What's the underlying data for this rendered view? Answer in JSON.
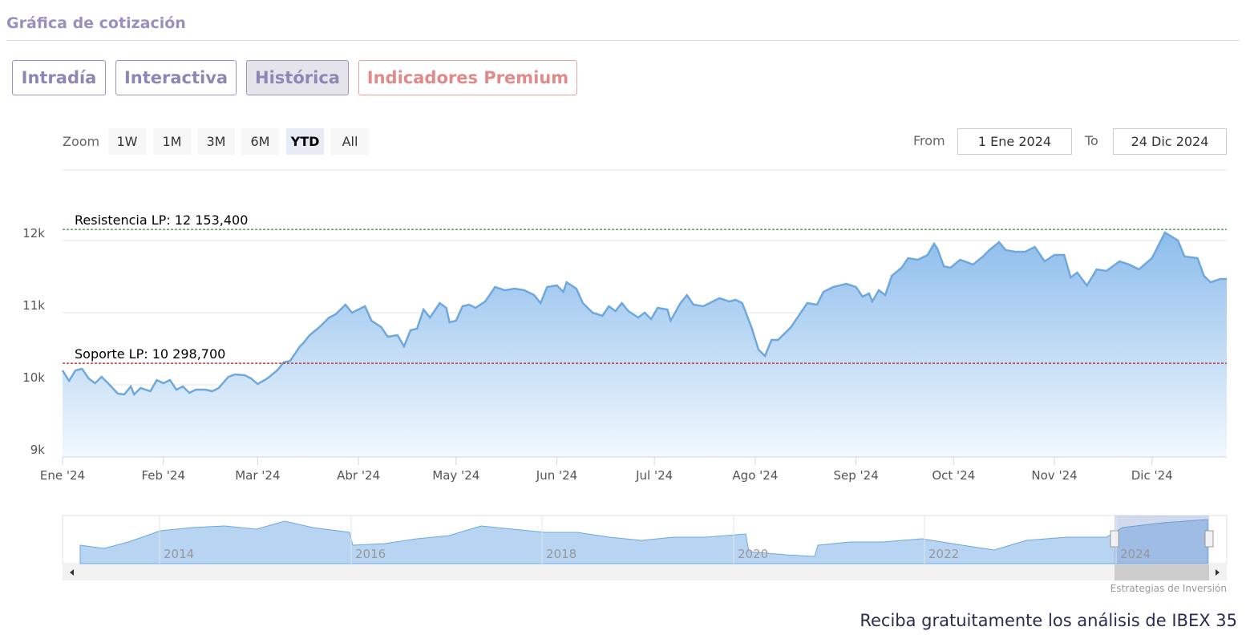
{
  "header": {
    "title": "Gráfica de cotización"
  },
  "tabs": [
    "Intradía",
    "Interactiva",
    "Histórica",
    "Indicadores Premium"
  ],
  "zoom": {
    "label": "Zoom",
    "buttons": [
      "1W",
      "1M",
      "3M",
      "6M",
      "YTD",
      "All"
    ]
  },
  "range": {
    "from_label": "From",
    "from": "1 Ene 2024",
    "to_label": "To",
    "to": "24 Dic 2024"
  },
  "chart_data": {
    "type": "area",
    "x": [
      0,
      2,
      4,
      6,
      8,
      10,
      12,
      14,
      17,
      19,
      21,
      22,
      24,
      27,
      29,
      31,
      33,
      35,
      37,
      39,
      41,
      44,
      46,
      48,
      51,
      53,
      56,
      58,
      60,
      63,
      66,
      68,
      70,
      73,
      74,
      76,
      79,
      82,
      84,
      87,
      89,
      93,
      95,
      98,
      100,
      103,
      105,
      107,
      109,
      111,
      113,
      116,
      118,
      119,
      121,
      123,
      125,
      127,
      130,
      133,
      136,
      139,
      142,
      145,
      147,
      149,
      152,
      154,
      155,
      158,
      160,
      163,
      166,
      168,
      170,
      172,
      174,
      177,
      179,
      181,
      183,
      186,
      187,
      190,
      192,
      194,
      197,
      200,
      202,
      205,
      207,
      209,
      212,
      214,
      216,
      218,
      220,
      222,
      224,
      226,
      229,
      232,
      234,
      237,
      241,
      244,
      246,
      248,
      249,
      251,
      253,
      255,
      258,
      260,
      263,
      266,
      268,
      269,
      271,
      273,
      276,
      280,
      283,
      285,
      288,
      290,
      293,
      296,
      299,
      302,
      305,
      308,
      310,
      312,
      315,
      318,
      321,
      325,
      328,
      331,
      335,
      337,
      339,
      343,
      345,
      349,
      351,
      353,
      356,
      358
    ],
    "series": [
      {
        "color": "#6fa8dc",
        "values": [
          10200,
          10056,
          10200,
          10222,
          10089,
          10022,
          10111,
          10022,
          9878,
          9867,
          9978,
          9867,
          9956,
          9911,
          10067,
          10022,
          10067,
          9933,
          9978,
          9889,
          9933,
          9933,
          9911,
          9956,
          10111,
          10144,
          10133,
          10089,
          10011,
          10089,
          10200,
          10311,
          10333,
          10533,
          10578,
          10689,
          10800,
          10933,
          10978,
          11111,
          11000,
          11089,
          10889,
          10800,
          10667,
          10689,
          10533,
          10756,
          10778,
          11044,
          10933,
          11133,
          11067,
          10867,
          10889,
          11089,
          11111,
          11067,
          11156,
          11356,
          11311,
          11333,
          11311,
          11244,
          11133,
          11356,
          11378,
          11289,
          11422,
          11333,
          11133,
          11000,
          10956,
          11089,
          11022,
          11133,
          11022,
          10933,
          11000,
          10911,
          11067,
          11044,
          10889,
          11133,
          11244,
          11111,
          11089,
          11156,
          11200,
          11156,
          11178,
          11133,
          10778,
          10489,
          10400,
          10622,
          10622,
          10711,
          10800,
          10933,
          11133,
          11111,
          11289,
          11356,
          11400,
          11356,
          11222,
          11267,
          11156,
          11311,
          11244,
          11511,
          11622,
          11756,
          11733,
          11800,
          11956,
          11889,
          11644,
          11622,
          11733,
          11667,
          11778,
          11867,
          11978,
          11867,
          11844,
          11844,
          11911,
          11711,
          11800,
          11800,
          11489,
          11556,
          11378,
          11600,
          11578,
          11711,
          11667,
          11600,
          11756,
          11933,
          12111,
          12000,
          11778,
          11756,
          11511,
          11422,
          11467,
          11467
        ]
      }
    ],
    "xlim": [
      0,
      358
    ],
    "xticks": [
      {
        "value": 0,
        "label": "Ene '24"
      },
      {
        "value": 31,
        "label": "Feb '24"
      },
      {
        "value": 60,
        "label": "Mar '24"
      },
      {
        "value": 91,
        "label": "Abr '24"
      },
      {
        "value": 121,
        "label": "May '24"
      },
      {
        "value": 152,
        "label": "Jun '24"
      },
      {
        "value": 182,
        "label": "Jul '24"
      },
      {
        "value": 213,
        "label": "Ago '24"
      },
      {
        "value": 244,
        "label": "Sep '24"
      },
      {
        "value": 274,
        "label": "Oct '24"
      },
      {
        "value": 305,
        "label": "Nov '24"
      },
      {
        "value": 335,
        "label": "Dic '24"
      }
    ],
    "ylim": [
      9000,
      12950
    ],
    "yticks": [
      {
        "value": 9000,
        "label": "9k"
      },
      {
        "value": 10000,
        "label": "10k"
      },
      {
        "value": 11000,
        "label": "11k"
      },
      {
        "value": 12000,
        "label": "12k"
      }
    ],
    "grid": true,
    "lines": [
      {
        "label": "Resistencia LP: 12 153,400",
        "value": 12153.4,
        "color": "#2e7d32"
      },
      {
        "label": "Soporte LP: 10 298,700",
        "value": 10298.7,
        "color": "#b71c1c"
      }
    ]
  },
  "navigator": {
    "labels": [
      "2014",
      "2016",
      "2018",
      "2020",
      "2022",
      "2024"
    ]
  },
  "credit": "Estrategias de Inversión",
  "footer": "Reciba gratuitamente los análisis de IBEX 35"
}
